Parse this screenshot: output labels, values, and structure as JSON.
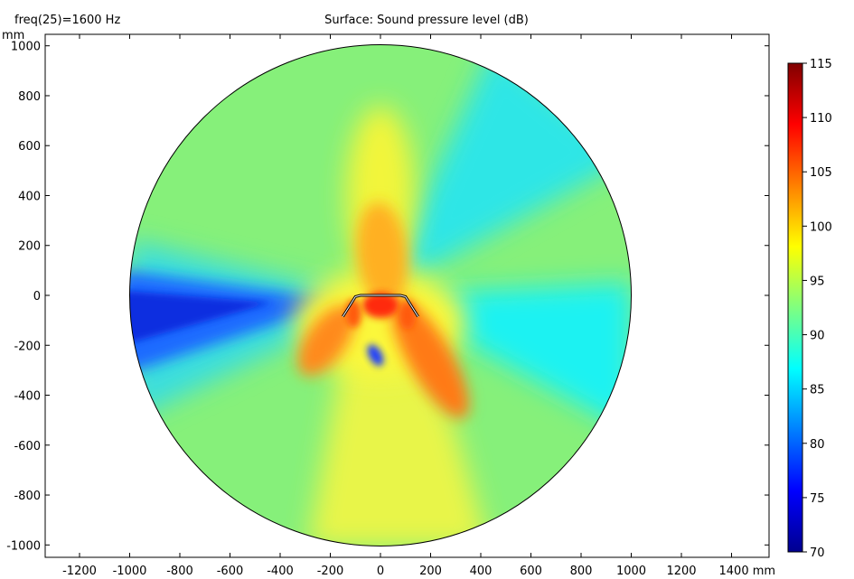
{
  "header": {
    "parameter_label": "freq(25)=1600 Hz",
    "plot_title": "Surface: Sound pressure level (dB)"
  },
  "chart_data": {
    "type": "heatmap",
    "title": "Surface: Sound pressure level (dB)",
    "subtitle": "freq(25)=1600 Hz",
    "x_unit": "mm",
    "y_unit": "mm",
    "xlim": [
      -1370,
      1560
    ],
    "ylim": [
      -1040,
      1040
    ],
    "x_ticks": [
      -1200,
      -1000,
      -800,
      -600,
      -400,
      -200,
      0,
      200,
      400,
      600,
      800,
      1000,
      1200,
      1400
    ],
    "y_ticks": [
      -1000,
      -800,
      -600,
      -400,
      -200,
      0,
      200,
      400,
      600,
      800,
      1000
    ],
    "x_tick_labels": [
      "-1200",
      "-1000",
      "-800",
      "-600",
      "-400",
      "-200",
      "0",
      "200",
      "400",
      "600",
      "800",
      "1000",
      "1200",
      "1400 mm"
    ],
    "y_tick_labels": [
      "-1000",
      "-800",
      "-600",
      "-400",
      "-200",
      "0",
      "200",
      "400",
      "600",
      "800",
      "1000"
    ],
    "y_unit_label": "mm",
    "domain": {
      "shape": "circle",
      "center": [
        0,
        0
      ],
      "radius": 1000
    },
    "speaker_outline": [
      [
        -150,
        -85
      ],
      [
        -100,
        -5
      ],
      [
        -80,
        0
      ],
      [
        80,
        0
      ],
      [
        100,
        -5
      ],
      [
        150,
        -85
      ]
    ],
    "colorbar": {
      "min": 70,
      "max": 115,
      "ticks": [
        70,
        75,
        80,
        85,
        90,
        95,
        100,
        105,
        110,
        115
      ],
      "tick_labels": [
        "70",
        "75",
        "80",
        "85",
        "90",
        "95",
        "100",
        "105",
        "110",
        "115"
      ],
      "colormap": "jet"
    },
    "field_description": {
      "background_level_db": 92,
      "hotspot_level_db": 112,
      "hotspot_center": [
        0,
        -40
      ],
      "minimum_level_db": 72,
      "minimum_center": [
        -20,
        -240
      ]
    }
  }
}
